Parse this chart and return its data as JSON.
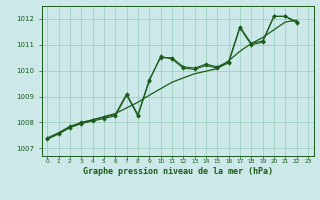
{
  "title": "Graphe pression niveau de la mer (hPa)",
  "bg_color": "#cce8e8",
  "grid_color": "#99ccbb",
  "line_color": "#1a5c1a",
  "x_labels": [
    "0",
    "1",
    "2",
    "3",
    "4",
    "5",
    "6",
    "7",
    "8",
    "9",
    "10",
    "11",
    "12",
    "13",
    "14",
    "15",
    "16",
    "17",
    "18",
    "19",
    "20",
    "21",
    "22",
    "23"
  ],
  "ylim": [
    1006.7,
    1012.5
  ],
  "xlim": [
    -0.5,
    23.5
  ],
  "yticks": [
    1007,
    1008,
    1009,
    1010,
    1011,
    1012
  ],
  "line1_x": [
    0,
    1,
    2,
    3,
    4,
    5,
    6,
    7,
    8,
    9,
    10,
    11,
    12,
    13,
    14,
    15,
    16,
    17,
    18,
    19,
    20,
    21,
    22
  ],
  "line1_y": [
    1007.35,
    1007.55,
    1007.8,
    1007.95,
    1008.05,
    1008.15,
    1008.25,
    1009.05,
    1008.25,
    1009.6,
    1010.55,
    1010.45,
    1010.1,
    1010.05,
    1010.2,
    1010.1,
    1010.3,
    1011.65,
    1011.0,
    1011.1,
    1012.1,
    1012.1,
    1011.85
  ],
  "line2_x": [
    0,
    1,
    2,
    3,
    4,
    5,
    6,
    7,
    8,
    9,
    10,
    11,
    12,
    13,
    14,
    15,
    16,
    17,
    18,
    19,
    20,
    21,
    22
  ],
  "line2_y": [
    1007.4,
    1007.6,
    1007.85,
    1008.0,
    1008.1,
    1008.2,
    1008.3,
    1009.1,
    1008.3,
    1009.65,
    1010.5,
    1010.5,
    1010.15,
    1010.1,
    1010.25,
    1010.15,
    1010.35,
    1011.7,
    1011.05,
    1011.15,
    1012.1,
    1012.1,
    1011.9
  ],
  "smooth_x": [
    0,
    1,
    2,
    3,
    4,
    5,
    6,
    7,
    8,
    9,
    10,
    11,
    12,
    13,
    14,
    15,
    16,
    17,
    18,
    19,
    20,
    21,
    22
  ],
  "smooth_y": [
    1007.35,
    1007.58,
    1007.8,
    1007.98,
    1008.1,
    1008.22,
    1008.34,
    1008.56,
    1008.78,
    1009.05,
    1009.3,
    1009.55,
    1009.72,
    1009.88,
    1009.98,
    1010.08,
    1010.38,
    1010.75,
    1011.05,
    1011.28,
    1011.58,
    1011.88,
    1011.95
  ]
}
